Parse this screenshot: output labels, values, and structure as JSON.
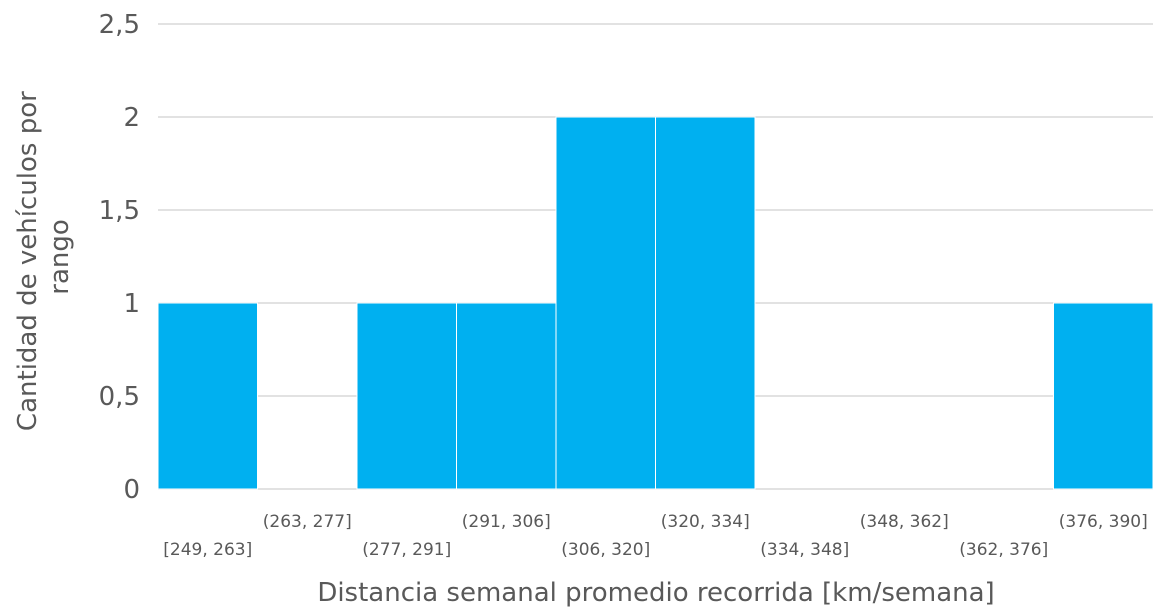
{
  "chart_data": {
    "type": "bar",
    "title": "",
    "xlabel": "Distancia semanal promedio recorrida [km/semana]",
    "ylabel_lines": [
      "Cantidad de vehículos por",
      "rango"
    ],
    "ylim": [
      0,
      2.5
    ],
    "y_ticks": [
      "0",
      "0,5",
      "1",
      "1,5",
      "2",
      "2,5"
    ],
    "categories": [
      "[249, 263]",
      "(263, 277]",
      "(277, 291]",
      "(291, 306]",
      "(306, 320]",
      "(320, 334]",
      "(334, 348]",
      "(348, 362]",
      "(362, 376]",
      "(376, 390]"
    ],
    "values": [
      1,
      0,
      1,
      1,
      2,
      2,
      0,
      0,
      0,
      1
    ],
    "grid": true,
    "bar_color": "#00B0F0",
    "gap": 0
  }
}
